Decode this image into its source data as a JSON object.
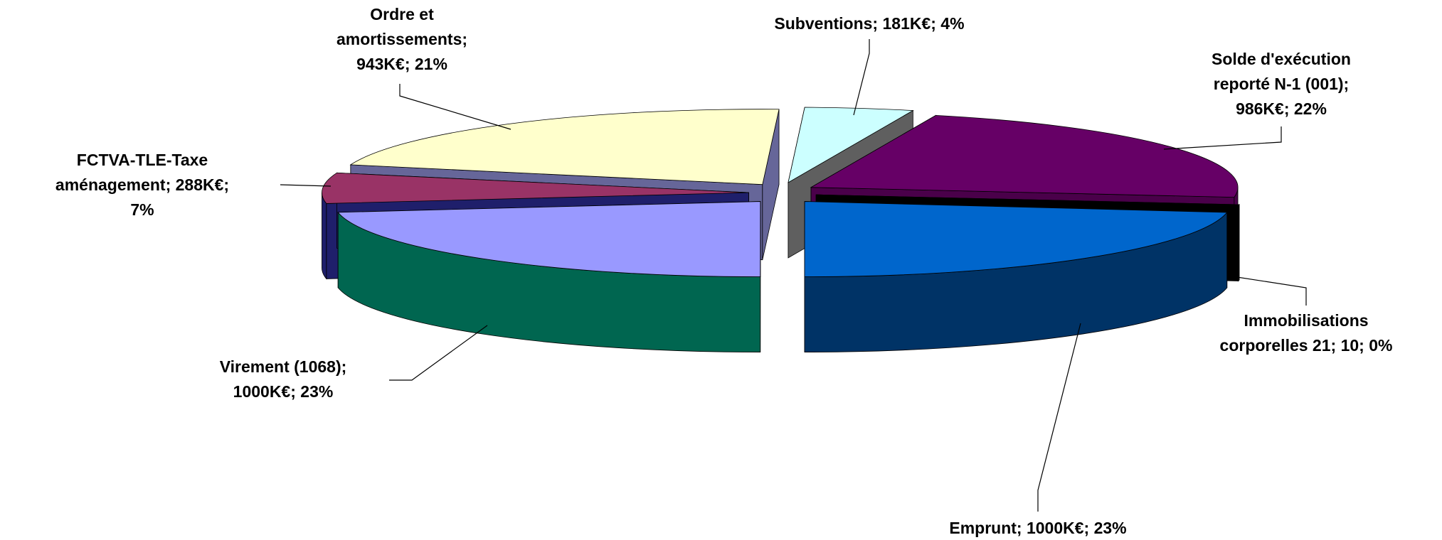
{
  "chart_data": {
    "type": "pie3d",
    "values": [
      986,
      10,
      1000,
      1000,
      288,
      943,
      181
    ],
    "value_labels": [
      [
        "Solde d'exécution",
        "reporté N-1 (001);",
        "986K€; 22%"
      ],
      [
        "Immobilisations",
        "corporelles 21; 10; 0%"
      ],
      [
        "Emprunt; 1000K€; 23%"
      ],
      [
        "Virement (1068);",
        "1000K€; 23%"
      ],
      [
        "FCTVA-TLE-Taxe",
        "aménagement; 288K€;",
        "7%"
      ],
      [
        "Ordre et",
        "amortissements;",
        "943K€; 21%"
      ],
      [
        "Subventions; 181K€; 4%"
      ]
    ],
    "colors": [
      "#660066",
      "#000000",
      "#0066cc",
      "#9999ff",
      "#993366",
      "#ffffcc",
      "#ccffff"
    ],
    "side_colors": [
      "#4a004a",
      "#000000",
      "#003366",
      "#006650",
      "#1f1f6b",
      "#666699",
      "#5f5f5f"
    ]
  }
}
